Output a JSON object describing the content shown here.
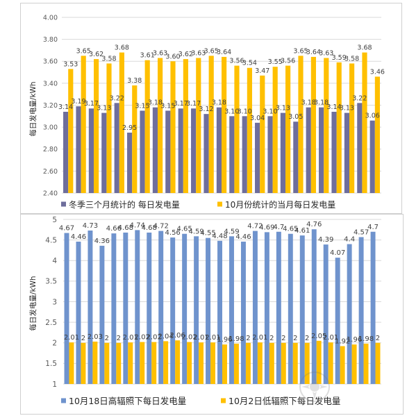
{
  "chart_data": [
    {
      "type": "bar",
      "ylabel": "每日发电量/kWh",
      "ylim": [
        2.4,
        4.0
      ],
      "yticks": [
        "4.00",
        "3.80",
        "3.60",
        "3.40",
        "3.20",
        "3.00",
        "2.80",
        "2.60",
        "2.40"
      ],
      "grid": true,
      "legend": "bottom",
      "series": [
        {
          "name": "冬季三个月统计的 每日发电量",
          "color": "#6E6E9C",
          "values": [
            3.14,
            3.19,
            3.17,
            3.13,
            3.22,
            2.95,
            3.15,
            3.18,
            3.15,
            3.17,
            3.17,
            3.12,
            3.18,
            3.1,
            3.1,
            3.04,
            3.1,
            3.13,
            3.05,
            3.18,
            3.18,
            3.14,
            3.13,
            3.22,
            3.06
          ]
        },
        {
          "name": "10月份统计的当月每日发电量",
          "color": "#FFC000",
          "values": [
            3.53,
            3.65,
            3.62,
            3.58,
            3.68,
            3.38,
            3.61,
            3.63,
            3.6,
            3.62,
            3.63,
            3.65,
            3.64,
            3.56,
            3.54,
            3.47,
            3.55,
            3.56,
            3.65,
            3.64,
            3.63,
            3.59,
            3.58,
            3.68,
            3.46
          ]
        }
      ]
    },
    {
      "type": "bar",
      "ylabel": "每日发电量/kWh",
      "ylim": [
        1,
        5
      ],
      "yticks": [
        "5",
        "4.5",
        "4",
        "3.5",
        "3",
        "2.5",
        "2",
        "1.5",
        "1"
      ],
      "grid": true,
      "legend": "bottom",
      "series": [
        {
          "name": "10月18日高辐照下每日发电量",
          "color": "#6F93CD",
          "values": [
            4.67,
            4.46,
            4.73,
            4.36,
            4.66,
            4.68,
            4.74,
            4.68,
            4.72,
            4.56,
            4.65,
            4.59,
            4.55,
            4.48,
            4.59,
            4.46,
            4.72,
            4.69,
            4.7,
            4.65,
            4.61,
            4.76,
            4.39,
            4.07,
            4.4,
            4.57,
            4.7
          ]
        },
        {
          "name": "10月2日低辐照下每日发电量",
          "color": "#FFC000",
          "values": [
            2.01,
            2,
            2.03,
            2,
            2,
            2.01,
            2.02,
            2.02,
            2.04,
            2.06,
            2.02,
            2.01,
            2.01,
            1.96,
            1.98,
            2,
            2.01,
            2,
            2,
            2,
            2,
            2.05,
            2.01,
            1.92,
            1.96,
            1.98,
            2
          ]
        }
      ]
    }
  ],
  "watermark": {
    "icon": "watermark-logo-icon"
  }
}
